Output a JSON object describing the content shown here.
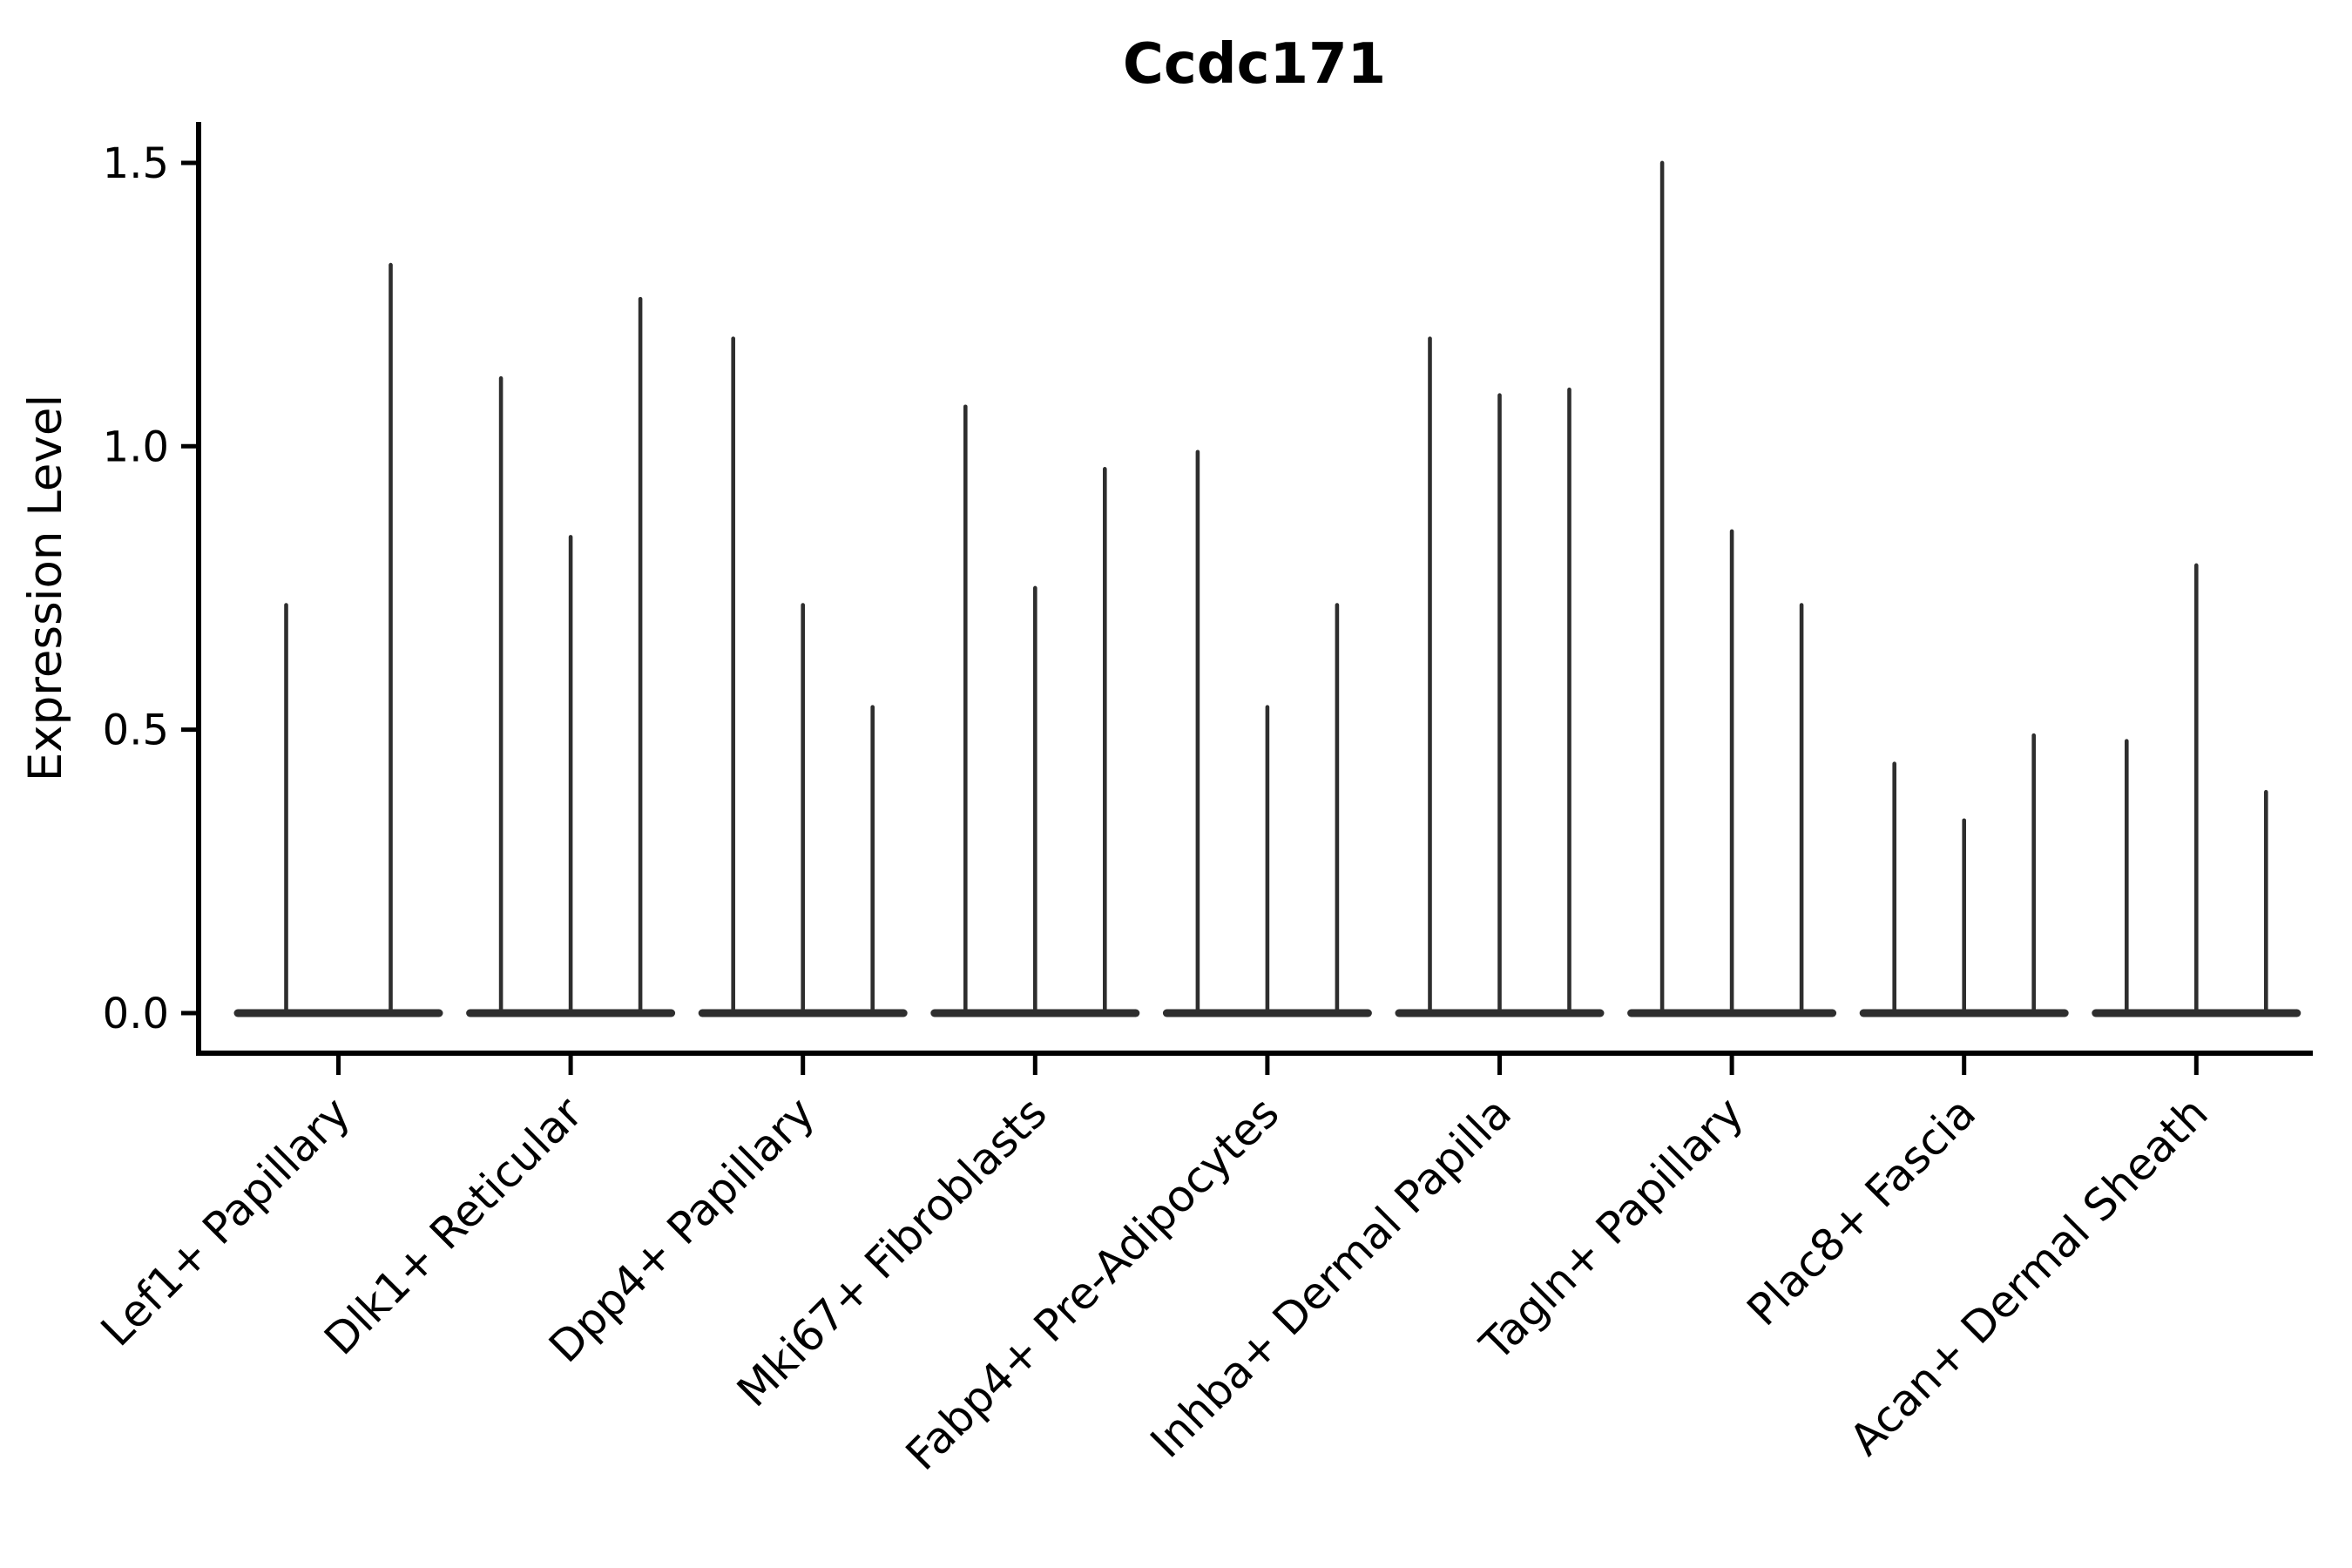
{
  "title": "Ccdc171",
  "axes": {
    "ylabel": "Expression Level",
    "ytick_labels": [
      "0.0",
      "0.5",
      "1.0",
      "1.5"
    ]
  },
  "colors": {
    "violin_stroke": "#2e2e2e",
    "axis": "#000000",
    "text": "#000000",
    "background": "#ffffff"
  },
  "chart_data": {
    "type": "violin",
    "title": "Ccdc171",
    "xlabel": "",
    "ylabel": "Expression Level",
    "ylim": [
      -0.07,
      1.57
    ],
    "yticks": [
      0.0,
      0.5,
      1.0,
      1.5
    ],
    "grid": false,
    "legend": "none",
    "description": "Single-cell expression violin plot; each category shows thin zero-inflated violins (flat base at 0 with a narrow spike up to the max expression value).",
    "categories": [
      "Lef1+ Papillary",
      "Dlk1+ Reticular",
      "Dpp4+ Papillary",
      "Mki67+ Fibroblasts",
      "Fabp4+ Pre-Adipocytes",
      "Inhba+ Dermal Papilla",
      "Tagln+ Papillary",
      "Plac8+ Fascia",
      "Acan+ Dermal Sheath"
    ],
    "groups": [
      {
        "label": "Lef1+ Papillary",
        "violin_max_values": [
          0.72,
          1.32
        ]
      },
      {
        "label": "Dlk1+ Reticular",
        "violin_max_values": [
          1.12,
          0.84,
          1.26
        ]
      },
      {
        "label": "Dpp4+ Papillary",
        "violin_max_values": [
          1.19,
          0.72,
          0.54
        ]
      },
      {
        "label": "Mki67+ Fibroblasts",
        "violin_max_values": [
          1.07,
          0.75,
          0.96
        ]
      },
      {
        "label": "Fabp4+ Pre-Adipocytes",
        "violin_max_values": [
          0.99,
          0.54,
          0.72
        ]
      },
      {
        "label": "Inhba+ Dermal Papilla",
        "violin_max_values": [
          1.19,
          1.09,
          1.1
        ]
      },
      {
        "label": "Tagln+ Papillary",
        "violin_max_values": [
          1.5,
          0.85,
          0.72
        ]
      },
      {
        "label": "Plac8+ Fascia",
        "violin_max_values": [
          0.44,
          0.34,
          0.49
        ]
      },
      {
        "label": "Acan+ Dermal Sheath",
        "violin_max_values": [
          0.48,
          0.79,
          0.39
        ]
      }
    ]
  }
}
